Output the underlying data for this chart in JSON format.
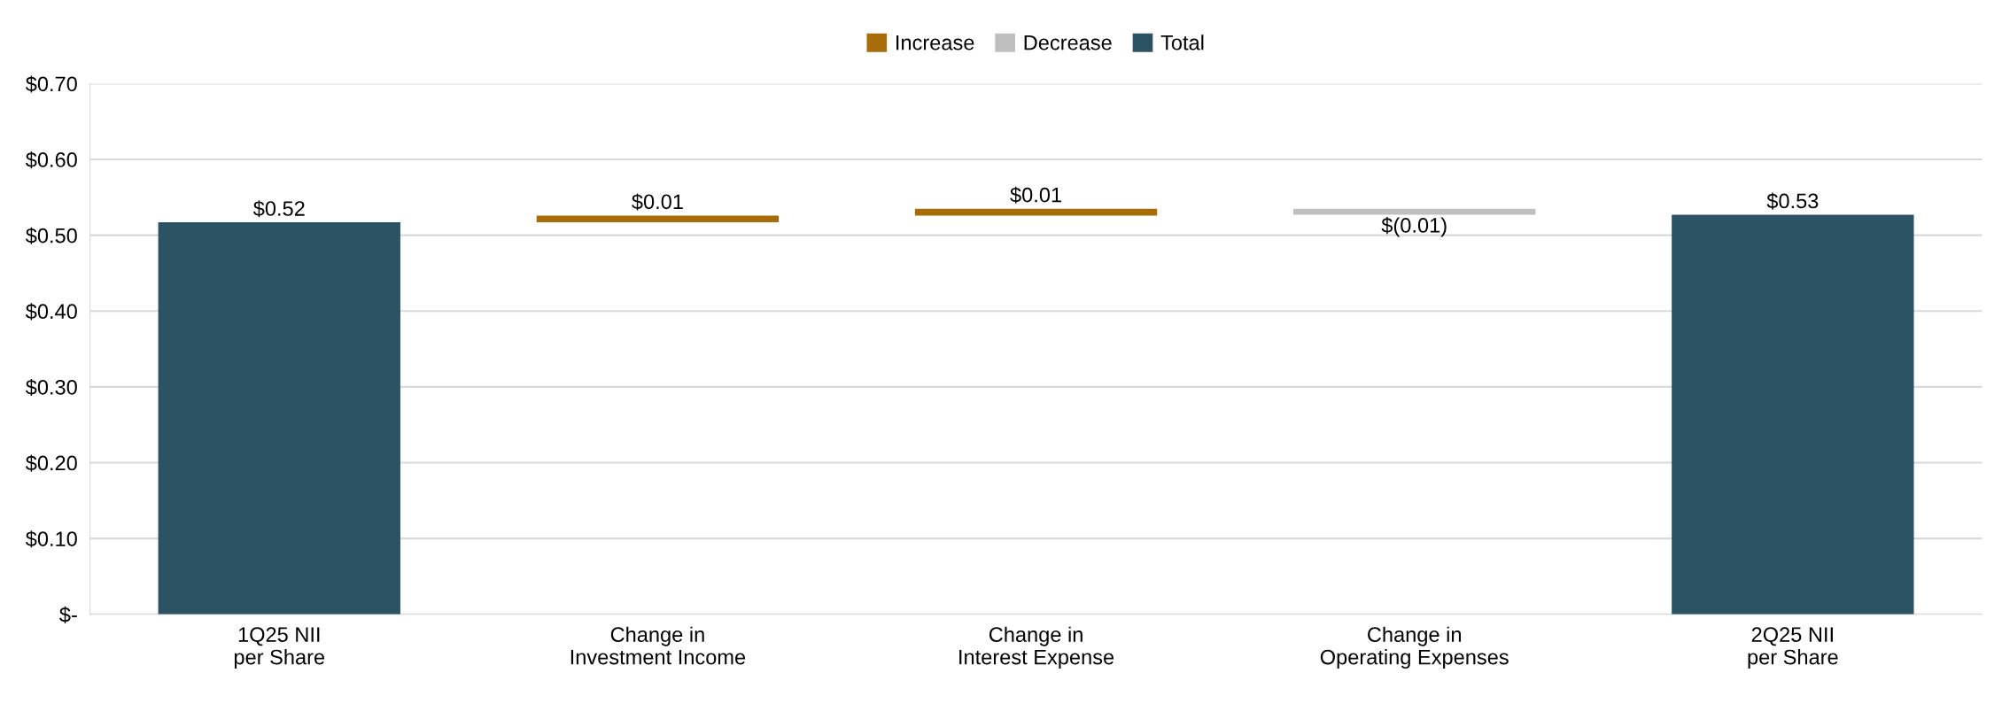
{
  "chart_data": {
    "type": "bar",
    "categories": [
      "1Q25 NII\nper Share",
      "Change in\nInvestment Income",
      "Change in\nInterest Expense",
      "Change in\nOperating Expenses",
      "2Q25 NII\nper Share"
    ],
    "series": [
      {
        "name": "Increase",
        "color": "#a86c08",
        "values": [
          null,
          0.009,
          0.009,
          null,
          null
        ],
        "base": [
          null,
          0.517,
          0.526,
          null,
          null
        ],
        "value_labels": [
          null,
          "$0.01",
          "$0.01",
          null,
          null
        ]
      },
      {
        "name": "Decrease",
        "color": "#bfbfbf",
        "values": [
          null,
          null,
          null,
          -0.008,
          null
        ],
        "base": [
          null,
          null,
          null,
          0.535,
          null
        ],
        "value_labels": [
          null,
          null,
          null,
          "$(0.01)",
          null
        ]
      },
      {
        "name": "Total",
        "color": "#2c5364",
        "values": [
          0.517,
          null,
          null,
          null,
          0.527
        ],
        "base": [
          0,
          null,
          null,
          null,
          0
        ],
        "value_labels": [
          "$0.52",
          null,
          null,
          null,
          "$0.53"
        ]
      }
    ],
    "ylim": [
      0,
      0.7
    ],
    "yticks": [
      {
        "value": 0,
        "label": "$-"
      },
      {
        "value": 0.1,
        "label": "$0.10"
      },
      {
        "value": 0.2,
        "label": "$0.20"
      },
      {
        "value": 0.3,
        "label": "$0.30"
      },
      {
        "value": 0.4,
        "label": "$0.40"
      },
      {
        "value": 0.5,
        "label": "$0.50"
      },
      {
        "value": 0.6,
        "label": "$0.60"
      },
      {
        "value": 0.7,
        "label": "$0.70"
      }
    ],
    "grid": "y",
    "legend": "top"
  }
}
